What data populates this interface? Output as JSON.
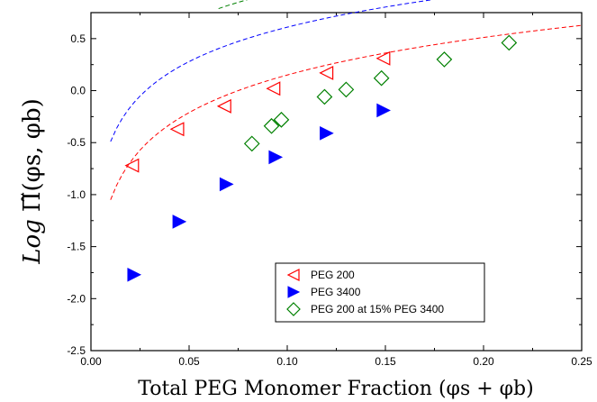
{
  "chart_data": {
    "type": "scatter",
    "xlabel": "Total PEG Monomer Fraction (φs + φb)",
    "ylabel_parts": {
      "log": "Log",
      "pi": "Π̃(φs, φb)"
    },
    "xlim": [
      0.0,
      0.25
    ],
    "ylim": [
      -2.5,
      0.75
    ],
    "x_ticks": [
      "0.00",
      "0.05",
      "0.10",
      "0.15",
      "0.20",
      "0.25"
    ],
    "x_tick_values": [
      0.0,
      0.05,
      0.1,
      0.15,
      0.2,
      0.25
    ],
    "y_ticks": [
      "-2.5",
      "-2.0",
      "-1.5",
      "-1.0",
      "-0.5",
      "0.0",
      "0.5"
    ],
    "y_tick_values": [
      -2.5,
      -2.0,
      -1.5,
      -1.0,
      -0.5,
      0.0,
      0.5
    ],
    "grid": false,
    "legend_position": "lower-right",
    "series": [
      {
        "name": "PEG 200",
        "color": "#ff0000",
        "marker": "open-left-triangle",
        "x": [
          0.021,
          0.044,
          0.068,
          0.093,
          0.12,
          0.149
        ],
        "y": [
          -0.72,
          -0.37,
          -0.15,
          0.02,
          0.17,
          0.31
        ],
        "fit": {
          "x": [
            0.01,
            0.25
          ],
          "a": 1.2,
          "b": 1.35
        }
      },
      {
        "name": "PEG 3400",
        "color": "#0000ff",
        "marker": "filled-right-triangle",
        "x": [
          0.022,
          0.045,
          0.069,
          0.094,
          0.12,
          0.149
        ],
        "y": [
          -1.77,
          -1.26,
          -0.9,
          -0.64,
          -0.41,
          -0.19
        ],
        "fit": {
          "x": [
            0.01,
            0.25
          ],
          "a": 1.1,
          "b": 1.71
        }
      },
      {
        "name": "PEG 200 at 15% PEG 3400",
        "color": "#008000",
        "marker": "open-diamond",
        "x": [
          0.082,
          0.092,
          0.097,
          0.119,
          0.13,
          0.148,
          0.18,
          0.213
        ],
        "y": [
          -0.51,
          -0.34,
          -0.28,
          -0.06,
          0.01,
          0.12,
          0.3,
          0.46
        ],
        "fit": {
          "x": [
            0.065,
            0.25
          ],
          "a": 0.97,
          "b": 1.94
        }
      }
    ]
  }
}
